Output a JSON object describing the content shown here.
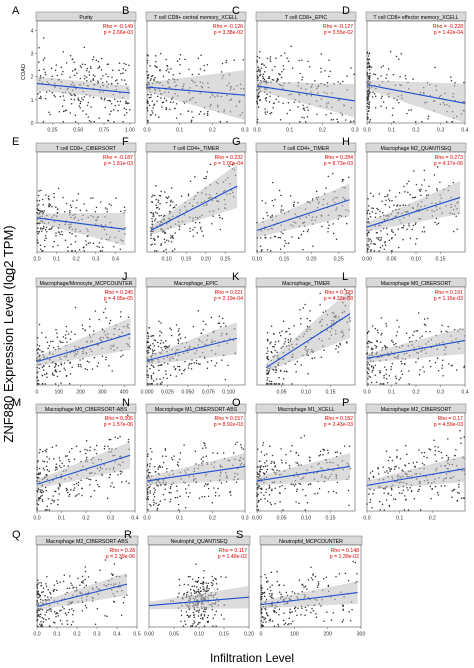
{
  "figure": {
    "ylabel": "ZNF880 Expression Level (log2 TPM)",
    "xlabel": "Infiltration Level",
    "row_label": "COAD"
  },
  "colors": {
    "scatter": "#333333",
    "fit_line": "#1f4fd1",
    "ci_band": "#bfbfbf",
    "strip_bg": "#d9d9d9",
    "stats_text": "#e00000",
    "panel_letter": "#000000"
  },
  "chart_data": [
    {
      "panel": "A",
      "type": "scatter",
      "title": "Purity",
      "rho": "Rho = -0.149",
      "p": "p = 2.66e-03",
      "xlim": [
        0.1,
        1.05
      ],
      "xticks": [
        "0.25",
        "0.50",
        "0.75",
        "1.00"
      ],
      "xtick_vals": [
        0.25,
        0.5,
        0.75,
        1.0
      ],
      "yticks": [
        "0",
        "1",
        "2",
        "3",
        "4"
      ],
      "ylim": [
        0,
        4.4
      ],
      "fit": [
        [
          0.1,
          1.7
        ],
        [
          1.0,
          1.3
        ]
      ],
      "ci": [
        0.15,
        0.25
      ],
      "seed": 11,
      "dist": "uniform",
      "n": 240
    },
    {
      "panel": "B",
      "type": "scatter",
      "title": "T cell CD8+ central memory_XCELL",
      "rho": "Rho = -0.126",
      "p": "p = 3.38e-02",
      "xlim": [
        0,
        0.3
      ],
      "xticks": [
        "0.0",
        "0.1",
        "0.2",
        "0.3"
      ],
      "xtick_vals": [
        0,
        0.1,
        0.2,
        0.3
      ],
      "ylim": [
        0,
        4.4
      ],
      "fit": [
        [
          0,
          1.55
        ],
        [
          0.3,
          1.2
        ]
      ],
      "ci": [
        0.1,
        0.9
      ],
      "seed": 23,
      "dist": "skew",
      "n": 230
    },
    {
      "panel": "C",
      "type": "scatter",
      "title": "T cell CD8+_EPIC",
      "rho": "Rho = -0.127",
      "p": "p = 3.55e-02",
      "xlim": [
        0,
        0.3
      ],
      "xticks": [
        "0.0",
        "0.1",
        "0.2",
        "0.3"
      ],
      "xtick_vals": [
        0,
        0.1,
        0.2,
        0.3
      ],
      "ylim": [
        0,
        4.4
      ],
      "fit": [
        [
          0,
          1.6
        ],
        [
          0.3,
          0.95
        ]
      ],
      "ci": [
        0.1,
        0.6
      ],
      "seed": 37,
      "dist": "skew",
      "n": 230
    },
    {
      "panel": "D",
      "type": "scatter",
      "title": "T cell CD8+ effector memory_XCELL",
      "rho": "Rho = -0.228",
      "p": "p = 1.42e-04",
      "xlim": [
        0,
        0.4
      ],
      "xticks": [
        "0.0",
        "0.1",
        "0.2",
        "0.3",
        "0.4"
      ],
      "xtick_vals": [
        0,
        0.1,
        0.2,
        0.3,
        0.4
      ],
      "ylim": [
        0,
        4.4
      ],
      "fit": [
        [
          0,
          1.65
        ],
        [
          0.4,
          0.85
        ]
      ],
      "ci": [
        0.1,
        0.7
      ],
      "seed": 41,
      "dist": "wall",
      "n": 200
    },
    {
      "panel": "E",
      "type": "scatter",
      "title": "T cell CD8+_CIBERSORT",
      "rho": "Rho = -0.187",
      "p": "p = 1.81e-03",
      "xlim": [
        0,
        0.5
      ],
      "xticks": [
        "0.0",
        "0.1",
        "0.2",
        "0.3",
        "0.4"
      ],
      "xtick_vals": [
        0,
        0.1,
        0.2,
        0.3,
        0.4
      ],
      "ylim": [
        0,
        4.4
      ],
      "fit": [
        [
          0,
          1.5
        ],
        [
          0.45,
          1.0
        ]
      ],
      "ci": [
        0.1,
        0.6
      ],
      "seed": 53,
      "dist": "skew",
      "n": 220
    },
    {
      "panel": "F",
      "type": "scatter",
      "title": "T cell CD4+_TIMER",
      "rho": "Rho = 0.232",
      "p": "p = 1.00e-04",
      "xlim": [
        0.05,
        0.3
      ],
      "xticks": [
        "0.10",
        "0.15",
        "0.20",
        "0.25"
      ],
      "xtick_vals": [
        0.1,
        0.15,
        0.2,
        0.25
      ],
      "ylim": [
        0,
        4.4
      ],
      "fit": [
        [
          0.06,
          0.95
        ],
        [
          0.28,
          2.9
        ]
      ],
      "ci": [
        0.1,
        0.8
      ],
      "seed": 61,
      "dist": "skew",
      "n": 230
    },
    {
      "panel": "G",
      "type": "scatter",
      "title": "T cell CD4+_TIMER",
      "rho": "Rho = 0.284",
      "p": "p = 8.73e-03",
      "xlim": [
        0.1,
        0.28
      ],
      "xticks": [
        "0.10",
        "0.15",
        "0.20",
        "0.25"
      ],
      "xtick_vals": [
        0.1,
        0.15,
        0.2,
        0.25
      ],
      "ylim": [
        0,
        4.4
      ],
      "fit": [
        [
          0.1,
          0.95
        ],
        [
          0.27,
          2.3
        ]
      ],
      "ci": [
        0.15,
        0.6
      ],
      "seed": 67,
      "dist": "uniform",
      "n": 150
    },
    {
      "panel": "H",
      "type": "scatter",
      "title": "Macrophage M2_QUANTISEQ",
      "rho": "Rho = 0.273",
      "p": "p = 4.17e-06",
      "xlim": [
        0,
        0.2
      ],
      "xticks": [
        "0.00",
        "0.05",
        "0.10",
        "0.15"
      ],
      "xtick_vals": [
        0,
        0.05,
        0.1,
        0.15
      ],
      "ylim": [
        0,
        4.4
      ],
      "fit": [
        [
          0,
          1.1
        ],
        [
          0.19,
          2.4
        ]
      ],
      "ci": [
        0.1,
        0.6
      ],
      "seed": 71,
      "dist": "skew",
      "n": 230
    },
    {
      "panel": "I",
      "type": "scatter",
      "title": "Macrophage/Monocyte_MCPCOUNTER",
      "rho": "Rho = 0.245",
      "p": "p = 4.05e-05",
      "xlim": [
        0,
        450
      ],
      "xticks": [
        "0",
        "100",
        "200",
        "300",
        "400"
      ],
      "xtick_vals": [
        0,
        100,
        200,
        300,
        400
      ],
      "ylim": [
        0,
        4.4
      ],
      "fit": [
        [
          0,
          1.05
        ],
        [
          430,
          2.3
        ]
      ],
      "ci": [
        0.1,
        0.6
      ],
      "seed": 83,
      "dist": "skew",
      "n": 240
    },
    {
      "panel": "J",
      "type": "scatter",
      "title": "Macrophage_EPIC",
      "rho": "Rho = 0.221",
      "p": "p = 2.19e-04",
      "xlim": [
        0,
        0.12
      ],
      "xticks": [
        "0.000",
        "0.025",
        "0.050",
        "0.075",
        "0.100"
      ],
      "xtick_vals": [
        0,
        0.025,
        0.05,
        0.075,
        0.1
      ],
      "ylim": [
        0,
        4.4
      ],
      "fit": [
        [
          0,
          1.1
        ],
        [
          0.11,
          2.1
        ]
      ],
      "ci": [
        0.1,
        0.6
      ],
      "seed": 89,
      "dist": "skew",
      "n": 230
    },
    {
      "panel": "K",
      "type": "scatter",
      "title": "Macrophage_TIMER",
      "rho": "Rho = 0.323",
      "p": "p = 4.33e-08",
      "xlim": [
        0,
        0.2
      ],
      "xticks": [
        "0.05",
        "0.10",
        "0.15"
      ],
      "xtick_vals": [
        0.05,
        0.1,
        0.15
      ],
      "ylim": [
        0,
        4.4
      ],
      "fit": [
        [
          0.02,
          0.8
        ],
        [
          0.19,
          3.2
        ]
      ],
      "ci": [
        0.1,
        0.9
      ],
      "seed": 97,
      "dist": "skew",
      "n": 230
    },
    {
      "panel": "L",
      "type": "scatter",
      "title": "Macrophage M0_CIBERSORT",
      "rho": "Rho = 0.191",
      "p": "p = 1.16e-03",
      "xlim": [
        0,
        0.4
      ],
      "xticks": [
        "0.0",
        "0.1",
        "0.2",
        "0.3",
        "0.4"
      ],
      "xtick_vals": [
        0,
        0.1,
        0.2,
        0.3,
        0.4
      ],
      "ylim": [
        0,
        4.4
      ],
      "fit": [
        [
          0,
          1.2
        ],
        [
          0.4,
          2.0
        ]
      ],
      "ci": [
        0.1,
        0.5
      ],
      "seed": 101,
      "dist": "skew",
      "n": 230
    },
    {
      "panel": "M",
      "type": "scatter",
      "title": "Macrophage M0_CIBERSORT-ABS",
      "rho": "Rho = 0.306",
      "p": "p = 1.57e-06",
      "xlim": [
        0,
        0.4
      ],
      "xticks": [
        "0.0",
        "0.1",
        "0.2",
        "0.3",
        "0.4"
      ],
      "xtick_vals": [
        0,
        0.1,
        0.2,
        0.3,
        0.4
      ],
      "ylim": [
        0,
        4.4
      ],
      "fit": [
        [
          0,
          1.2
        ],
        [
          0.38,
          2.5
        ]
      ],
      "ci": [
        0.1,
        0.5
      ],
      "seed": 107,
      "dist": "skew",
      "n": 240
    },
    {
      "panel": "N",
      "type": "scatter",
      "title": "Macrophage M1_CIBERSORT-ABS",
      "rho": "Rho = 0.157",
      "p": "p = 8.92e-03",
      "xlim": [
        0,
        0.3
      ],
      "xticks": [
        "0.0",
        "0.1",
        "0.2",
        "0.3"
      ],
      "xtick_vals": [
        0,
        0.1,
        0.2,
        0.3
      ],
      "ylim": [
        0,
        4.4
      ],
      "fit": [
        [
          0,
          1.35
        ],
        [
          0.3,
          2.0
        ]
      ],
      "ci": [
        0.1,
        0.5
      ],
      "seed": 109,
      "dist": "skew",
      "n": 230
    },
    {
      "panel": "O",
      "type": "scatter",
      "title": "Macrophage M1_XCELL",
      "rho": "Rho = 0.182",
      "p": "p = 2.43e-03",
      "xlim": [
        0,
        0.2
      ],
      "xticks": [
        "0.00",
        "0.05",
        "0.10",
        "0.15"
      ],
      "xtick_vals": [
        0,
        0.05,
        0.1,
        0.15
      ],
      "ylim": [
        0,
        4.4
      ],
      "fit": [
        [
          0,
          1.35
        ],
        [
          0.19,
          2.0
        ]
      ],
      "ci": [
        0.1,
        0.5
      ],
      "seed": 113,
      "dist": "skew",
      "n": 230
    },
    {
      "panel": "P",
      "type": "scatter",
      "title": "Macrophage M2_CIBERSORT",
      "rho": "Rho = 0.17",
      "p": "p = 4.59e-03",
      "xlim": [
        0,
        0.3
      ],
      "xticks": [
        "0.0",
        "0.1",
        "0.2"
      ],
      "xtick_vals": [
        0,
        0.1,
        0.2
      ],
      "ylim": [
        0,
        4.4
      ],
      "fit": [
        [
          0,
          1.15
        ],
        [
          0.3,
          1.9
        ]
      ],
      "ci": [
        0.1,
        0.5
      ],
      "seed": 127,
      "dist": "uniform",
      "n": 230
    },
    {
      "panel": "Q",
      "type": "scatter",
      "title": "Macrophage M2_CIBERSORT-ABS",
      "rho": "Rho = 0.28",
      "p": "p = 2.39e-06",
      "xlim": [
        0,
        0.5
      ],
      "xticks": [
        "0.0",
        "0.1",
        "0.2",
        "0.3",
        "0.4",
        "0.5"
      ],
      "xtick_vals": [
        0,
        0.1,
        0.2,
        0.3,
        0.4,
        0.5
      ],
      "ylim": [
        0,
        4.4
      ],
      "fit": [
        [
          0,
          1.1
        ],
        [
          0.45,
          2.3
        ]
      ],
      "ci": [
        0.1,
        0.5
      ],
      "seed": 131,
      "dist": "skew",
      "n": 240
    },
    {
      "panel": "R",
      "type": "scatter",
      "title": "Neutrophil_QUANTISEQ",
      "rho": "Rho = 0.117",
      "p": "p = 1.49e-02",
      "xlim": [
        0,
        0.2
      ],
      "xticks": [
        "0.00",
        "0.05",
        "0.10",
        "0.15",
        "0.20"
      ],
      "xtick_vals": [
        0,
        0.05,
        0.1,
        0.15,
        0.2
      ],
      "ylim": [
        0,
        4.4
      ],
      "fit": [
        [
          0,
          1.15
        ],
        [
          0.2,
          1.6
        ]
      ],
      "ci": [
        0.1,
        0.5
      ],
      "seed": 137,
      "dist": "center",
      "n": 230
    },
    {
      "panel": "S",
      "type": "scatter",
      "title": "Neutrophil_MCPCOUNTER",
      "rho": "Rho = 0.148",
      "p": "p = 1.39e-02",
      "xlim": [
        0,
        300
      ],
      "xticks": [
        "0",
        "100",
        "200",
        "300"
      ],
      "xtick_vals": [
        0,
        100,
        200,
        300
      ],
      "ylim": [
        0,
        4.4
      ],
      "fit": [
        [
          0,
          1.2
        ],
        [
          290,
          1.85
        ]
      ],
      "ci": [
        0.1,
        0.5
      ],
      "seed": 139,
      "dist": "skew",
      "n": 230
    }
  ]
}
